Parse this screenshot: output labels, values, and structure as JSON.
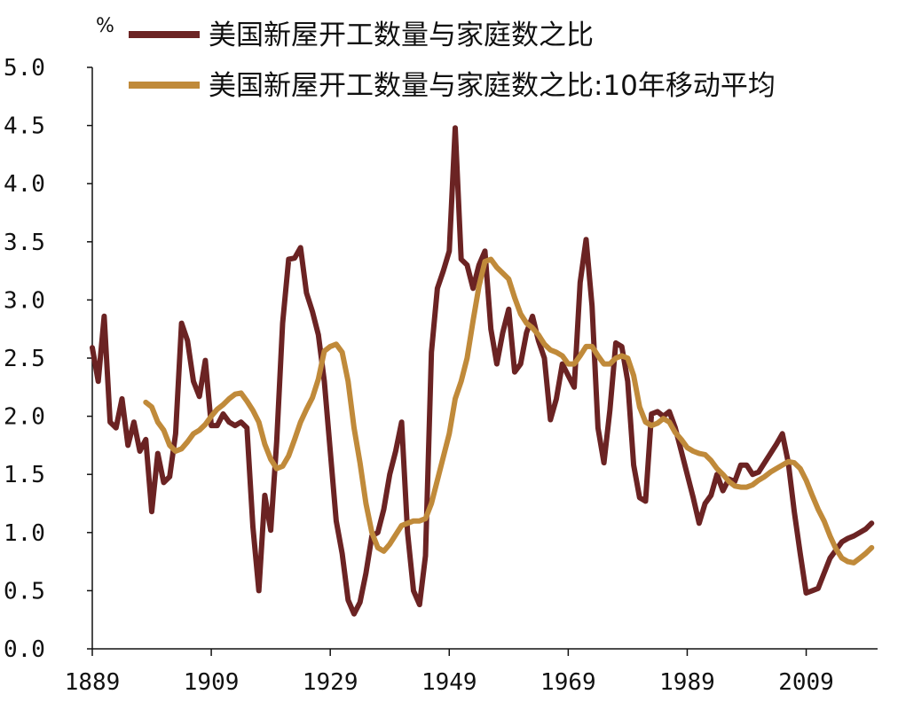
{
  "chart_data": {
    "type": "line",
    "title": "",
    "ylabel": "",
    "y_unit": "%",
    "xlim": [
      1889,
      2021
    ],
    "ylim": [
      0,
      5
    ],
    "yticks": [
      "0.0",
      "0.5",
      "1.0",
      "1.5",
      "2.0",
      "2.5",
      "3.0",
      "3.5",
      "4.0",
      "4.5",
      "5.0"
    ],
    "xticks": [
      "1889",
      "1909",
      "1929",
      "1949",
      "1969",
      "1989",
      "2009"
    ],
    "grid": false,
    "legend_position": "top",
    "series": [
      {
        "name": "美国新屋开工数量与家庭数之比",
        "color": "#6b2323",
        "points": [
          [
            1889,
            2.59
          ],
          [
            1890,
            2.3
          ],
          [
            1891,
            2.86
          ],
          [
            1892,
            1.95
          ],
          [
            1893,
            1.9
          ],
          [
            1894,
            2.15
          ],
          [
            1895,
            1.75
          ],
          [
            1896,
            1.95
          ],
          [
            1897,
            1.7
          ],
          [
            1898,
            1.8
          ],
          [
            1899,
            1.18
          ],
          [
            1900,
            1.68
          ],
          [
            1901,
            1.43
          ],
          [
            1902,
            1.48
          ],
          [
            1903,
            1.85
          ],
          [
            1904,
            2.8
          ],
          [
            1905,
            2.65
          ],
          [
            1906,
            2.3
          ],
          [
            1907,
            2.17
          ],
          [
            1908,
            2.48
          ],
          [
            1909,
            1.92
          ],
          [
            1910,
            1.92
          ],
          [
            1911,
            2.02
          ],
          [
            1912,
            1.95
          ],
          [
            1913,
            1.92
          ],
          [
            1914,
            1.95
          ],
          [
            1915,
            1.9
          ],
          [
            1916,
            1.05
          ],
          [
            1917,
            0.5
          ],
          [
            1918,
            1.32
          ],
          [
            1919,
            1.02
          ],
          [
            1920,
            1.78
          ],
          [
            1921,
            2.8
          ],
          [
            1922,
            3.35
          ],
          [
            1923,
            3.36
          ],
          [
            1924,
            3.45
          ],
          [
            1925,
            3.06
          ],
          [
            1926,
            2.9
          ],
          [
            1927,
            2.7
          ],
          [
            1928,
            2.3
          ],
          [
            1929,
            1.7
          ],
          [
            1930,
            1.1
          ],
          [
            1931,
            0.82
          ],
          [
            1932,
            0.42
          ],
          [
            1933,
            0.3
          ],
          [
            1934,
            0.4
          ],
          [
            1935,
            0.65
          ],
          [
            1936,
            0.97
          ],
          [
            1937,
            1.0
          ],
          [
            1938,
            1.2
          ],
          [
            1939,
            1.5
          ],
          [
            1940,
            1.7
          ],
          [
            1941,
            1.95
          ],
          [
            1942,
            1.0
          ],
          [
            1943,
            0.5
          ],
          [
            1944,
            0.38
          ],
          [
            1945,
            0.8
          ],
          [
            1946,
            2.55
          ],
          [
            1947,
            3.1
          ],
          [
            1948,
            3.25
          ],
          [
            1949,
            3.42
          ],
          [
            1950,
            4.48
          ],
          [
            1951,
            3.35
          ],
          [
            1952,
            3.3
          ],
          [
            1953,
            3.1
          ],
          [
            1954,
            3.3
          ],
          [
            1955,
            3.42
          ],
          [
            1956,
            2.75
          ],
          [
            1957,
            2.45
          ],
          [
            1958,
            2.72
          ],
          [
            1959,
            2.92
          ],
          [
            1960,
            2.38
          ],
          [
            1961,
            2.45
          ],
          [
            1962,
            2.72
          ],
          [
            1963,
            2.86
          ],
          [
            1964,
            2.65
          ],
          [
            1965,
            2.5
          ],
          [
            1966,
            1.97
          ],
          [
            1967,
            2.15
          ],
          [
            1968,
            2.45
          ],
          [
            1969,
            2.35
          ],
          [
            1970,
            2.25
          ],
          [
            1971,
            3.15
          ],
          [
            1972,
            3.52
          ],
          [
            1973,
            2.95
          ],
          [
            1974,
            1.9
          ],
          [
            1975,
            1.6
          ],
          [
            1976,
            2.05
          ],
          [
            1977,
            2.63
          ],
          [
            1978,
            2.6
          ],
          [
            1979,
            2.3
          ],
          [
            1980,
            1.58
          ],
          [
            1981,
            1.3
          ],
          [
            1982,
            1.27
          ],
          [
            1983,
            2.02
          ],
          [
            1984,
            2.04
          ],
          [
            1985,
            2.0
          ],
          [
            1986,
            2.04
          ],
          [
            1987,
            1.9
          ],
          [
            1988,
            1.7
          ],
          [
            1989,
            1.5
          ],
          [
            1990,
            1.3
          ],
          [
            1991,
            1.08
          ],
          [
            1992,
            1.25
          ],
          [
            1993,
            1.32
          ],
          [
            1994,
            1.5
          ],
          [
            1995,
            1.36
          ],
          [
            1996,
            1.46
          ],
          [
            1997,
            1.44
          ],
          [
            1998,
            1.58
          ],
          [
            1999,
            1.58
          ],
          [
            2000,
            1.5
          ],
          [
            2001,
            1.52
          ],
          [
            2002,
            1.6
          ],
          [
            2003,
            1.68
          ],
          [
            2004,
            1.76
          ],
          [
            2005,
            1.85
          ],
          [
            2006,
            1.6
          ],
          [
            2007,
            1.18
          ],
          [
            2008,
            0.82
          ],
          [
            2009,
            0.48
          ],
          [
            2010,
            0.5
          ],
          [
            2011,
            0.52
          ],
          [
            2012,
            0.65
          ],
          [
            2013,
            0.78
          ],
          [
            2014,
            0.85
          ],
          [
            2015,
            0.92
          ],
          [
            2016,
            0.95
          ],
          [
            2017,
            0.97
          ],
          [
            2018,
            1.0
          ],
          [
            2019,
            1.03
          ],
          [
            2020,
            1.08
          ]
        ]
      },
      {
        "name": "美国新屋开工数量与家庭数之比:10年移动平均",
        "color": "#c08a3a",
        "points": [
          [
            1898,
            2.12
          ],
          [
            1899,
            2.08
          ],
          [
            1900,
            1.95
          ],
          [
            1901,
            1.88
          ],
          [
            1902,
            1.75
          ],
          [
            1903,
            1.7
          ],
          [
            1904,
            1.72
          ],
          [
            1905,
            1.78
          ],
          [
            1906,
            1.85
          ],
          [
            1907,
            1.88
          ],
          [
            1908,
            1.93
          ],
          [
            1909,
            2.0
          ],
          [
            1910,
            2.06
          ],
          [
            1911,
            2.1
          ],
          [
            1912,
            2.15
          ],
          [
            1913,
            2.19
          ],
          [
            1914,
            2.2
          ],
          [
            1915,
            2.13
          ],
          [
            1916,
            2.05
          ],
          [
            1917,
            1.95
          ],
          [
            1918,
            1.76
          ],
          [
            1919,
            1.63
          ],
          [
            1920,
            1.55
          ],
          [
            1921,
            1.57
          ],
          [
            1922,
            1.66
          ],
          [
            1923,
            1.8
          ],
          [
            1924,
            1.95
          ],
          [
            1925,
            2.06
          ],
          [
            1926,
            2.16
          ],
          [
            1927,
            2.32
          ],
          [
            1928,
            2.56
          ],
          [
            1929,
            2.6
          ],
          [
            1930,
            2.62
          ],
          [
            1931,
            2.55
          ],
          [
            1932,
            2.3
          ],
          [
            1933,
            1.9
          ],
          [
            1934,
            1.6
          ],
          [
            1935,
            1.25
          ],
          [
            1936,
            1.0
          ],
          [
            1937,
            0.87
          ],
          [
            1938,
            0.84
          ],
          [
            1939,
            0.9
          ],
          [
            1940,
            0.98
          ],
          [
            1941,
            1.06
          ],
          [
            1942,
            1.08
          ],
          [
            1943,
            1.1
          ],
          [
            1944,
            1.1
          ],
          [
            1945,
            1.12
          ],
          [
            1946,
            1.25
          ],
          [
            1947,
            1.45
          ],
          [
            1948,
            1.65
          ],
          [
            1949,
            1.85
          ],
          [
            1950,
            2.15
          ],
          [
            1951,
            2.3
          ],
          [
            1952,
            2.5
          ],
          [
            1953,
            2.82
          ],
          [
            1954,
            3.12
          ],
          [
            1955,
            3.33
          ],
          [
            1956,
            3.35
          ],
          [
            1957,
            3.28
          ],
          [
            1958,
            3.23
          ],
          [
            1959,
            3.18
          ],
          [
            1960,
            3.02
          ],
          [
            1961,
            2.88
          ],
          [
            1962,
            2.8
          ],
          [
            1963,
            2.76
          ],
          [
            1964,
            2.7
          ],
          [
            1965,
            2.62
          ],
          [
            1966,
            2.57
          ],
          [
            1967,
            2.55
          ],
          [
            1968,
            2.52
          ],
          [
            1969,
            2.45
          ],
          [
            1970,
            2.45
          ],
          [
            1971,
            2.52
          ],
          [
            1972,
            2.6
          ],
          [
            1973,
            2.6
          ],
          [
            1974,
            2.52
          ],
          [
            1975,
            2.45
          ],
          [
            1976,
            2.45
          ],
          [
            1977,
            2.5
          ],
          [
            1978,
            2.52
          ],
          [
            1979,
            2.5
          ],
          [
            1980,
            2.35
          ],
          [
            1981,
            2.08
          ],
          [
            1982,
            1.95
          ],
          [
            1983,
            1.92
          ],
          [
            1984,
            1.94
          ],
          [
            1985,
            1.98
          ],
          [
            1986,
            1.95
          ],
          [
            1987,
            1.86
          ],
          [
            1988,
            1.8
          ],
          [
            1989,
            1.73
          ],
          [
            1990,
            1.7
          ],
          [
            1991,
            1.68
          ],
          [
            1992,
            1.67
          ],
          [
            1993,
            1.62
          ],
          [
            1994,
            1.55
          ],
          [
            1995,
            1.5
          ],
          [
            1996,
            1.44
          ],
          [
            1997,
            1.4
          ],
          [
            1998,
            1.39
          ],
          [
            1999,
            1.39
          ],
          [
            2000,
            1.41
          ],
          [
            2001,
            1.45
          ],
          [
            2002,
            1.48
          ],
          [
            2003,
            1.52
          ],
          [
            2004,
            1.55
          ],
          [
            2005,
            1.58
          ],
          [
            2006,
            1.61
          ],
          [
            2007,
            1.6
          ],
          [
            2008,
            1.55
          ],
          [
            2009,
            1.45
          ],
          [
            2010,
            1.32
          ],
          [
            2011,
            1.2
          ],
          [
            2012,
            1.1
          ],
          [
            2013,
            0.97
          ],
          [
            2014,
            0.86
          ],
          [
            2015,
            0.78
          ],
          [
            2016,
            0.75
          ],
          [
            2017,
            0.74
          ],
          [
            2018,
            0.78
          ],
          [
            2019,
            0.82
          ],
          [
            2020,
            0.87
          ]
        ]
      }
    ]
  }
}
